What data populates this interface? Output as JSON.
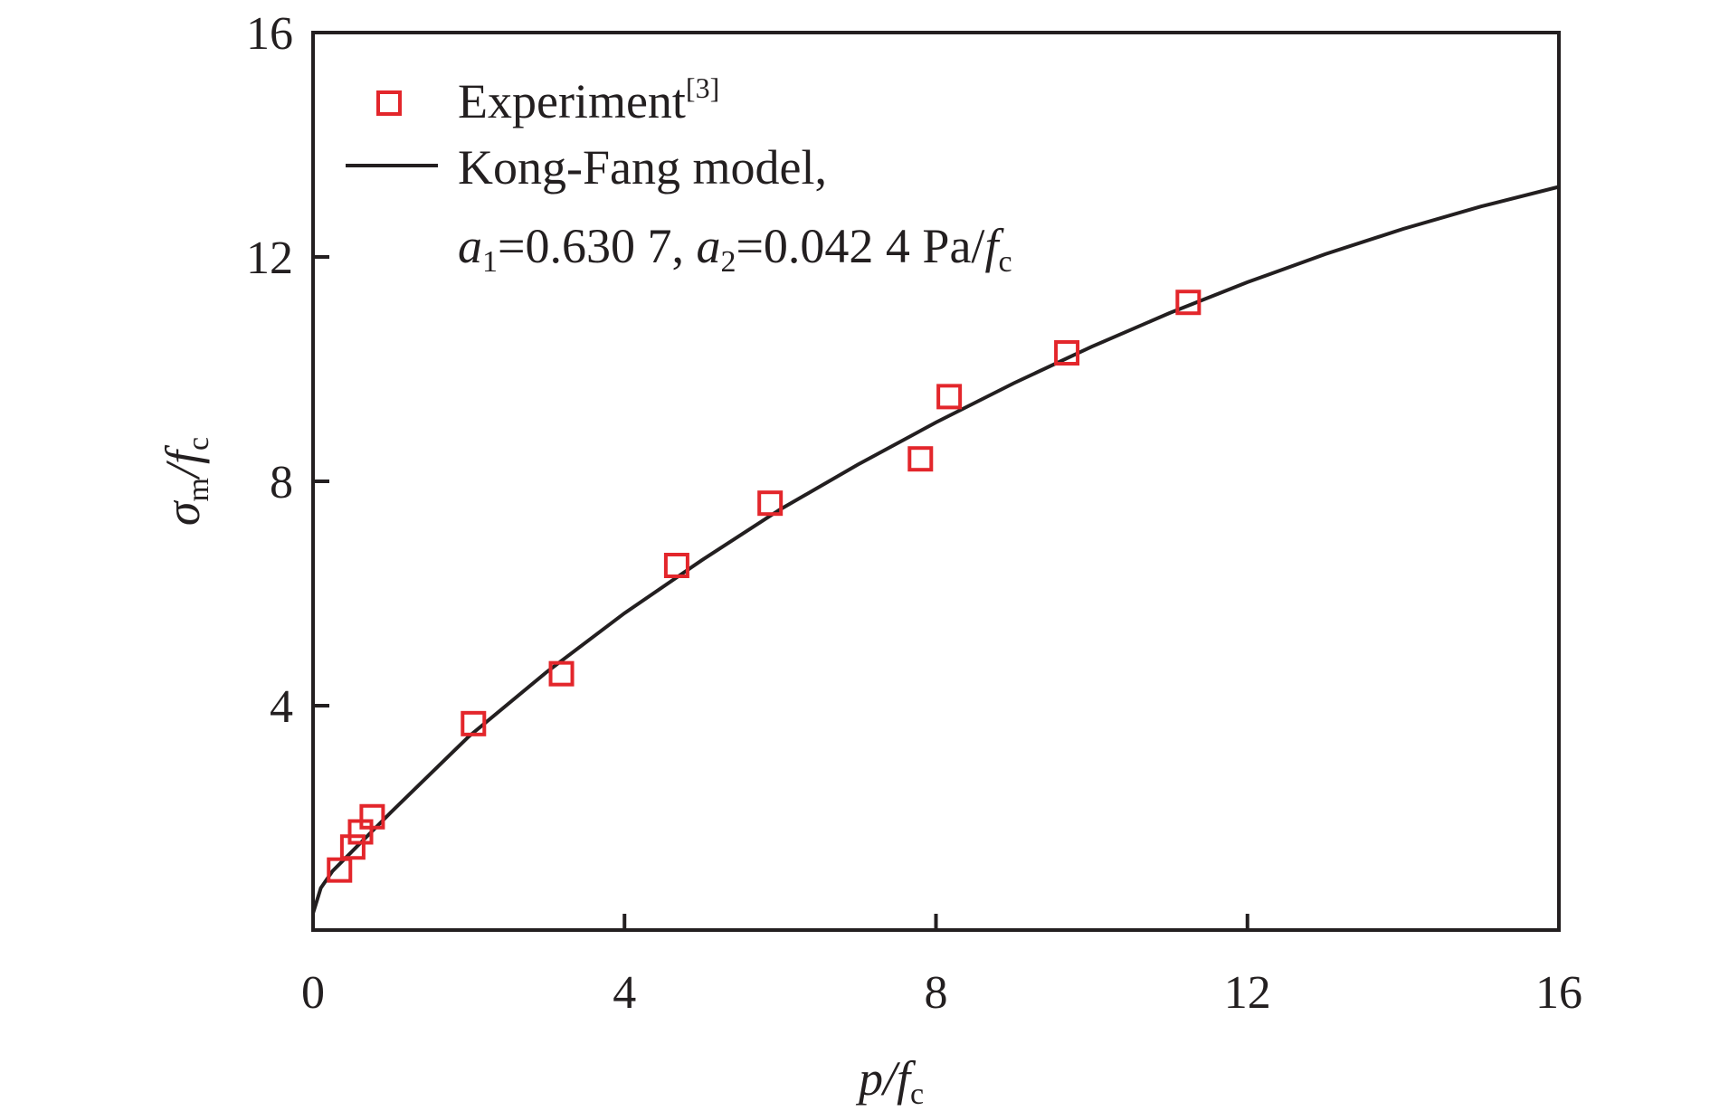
{
  "chart_data": {
    "type": "scatter",
    "title": "",
    "xlabel": "p/fc",
    "ylabel": "σm/fc",
    "xlabel_parts": {
      "main": "p/f",
      "sub": "c"
    },
    "ylabel_parts": {
      "sigma": "σ",
      "sub1": "m",
      "mid": "/f",
      "sub2": "c"
    },
    "xlim": [
      0,
      16
    ],
    "ylim": [
      0,
      16
    ],
    "xticks": [
      "0",
      "4",
      "8",
      "12",
      "16"
    ],
    "yticks": [
      "4",
      "8",
      "12",
      "16"
    ],
    "grid": false,
    "legend_position": "top-left",
    "series": [
      {
        "name": "Experiment[3]",
        "legend_main": "Experiment",
        "legend_sup": "[3]",
        "type": "scatter",
        "marker": "open-square",
        "color": "#e3262b",
        "points": [
          [
            0.34,
            1.07
          ],
          [
            0.51,
            1.48
          ],
          [
            0.61,
            1.75
          ],
          [
            0.76,
            2.02
          ],
          [
            2.06,
            3.68
          ],
          [
            3.19,
            4.57
          ],
          [
            4.67,
            6.5
          ],
          [
            5.87,
            7.61
          ],
          [
            7.8,
            8.4
          ],
          [
            8.17,
            9.51
          ],
          [
            9.68,
            10.29
          ],
          [
            11.24,
            11.19
          ]
        ]
      },
      {
        "name": "Kong-Fang model, a1=0.630 7, a2=0.042 4 Pa/fc",
        "legend_line1": "Kong-Fang model,",
        "legend_line2": {
          "a1": "a",
          "a1sub": "1",
          "a1val": "=0.630 7, ",
          "a2": "a",
          "a2sub": "2",
          "a2val": "=0.042 4 Pa/",
          "f": "f",
          "fsub": "c"
        },
        "type": "line",
        "color": "#231f20",
        "points": [
          [
            0,
            0.3
          ],
          [
            0.1,
            0.75
          ],
          [
            0.25,
            1.05
          ],
          [
            0.5,
            1.4
          ],
          [
            1,
            2.1
          ],
          [
            2,
            3.45
          ],
          [
            3,
            4.6
          ],
          [
            4,
            5.65
          ],
          [
            5,
            6.6
          ],
          [
            6,
            7.5
          ],
          [
            7,
            8.3
          ],
          [
            8,
            9.05
          ],
          [
            9,
            9.75
          ],
          [
            10,
            10.4
          ],
          [
            11,
            11.0
          ],
          [
            12,
            11.55
          ],
          [
            13,
            12.05
          ],
          [
            14,
            12.5
          ],
          [
            15,
            12.9
          ],
          [
            16,
            13.25
          ]
        ]
      }
    ]
  }
}
